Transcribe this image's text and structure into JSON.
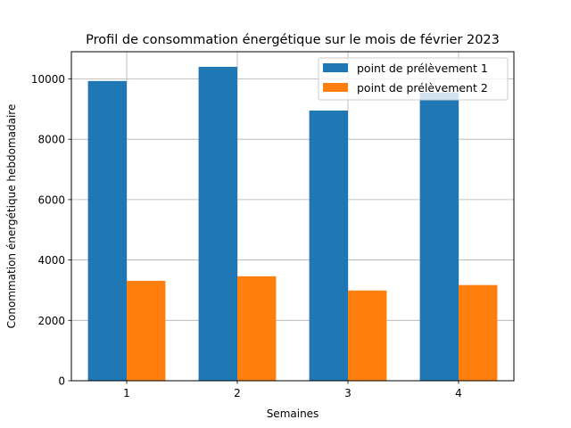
{
  "chart_data": {
    "type": "bar",
    "title": "Profil de consommation énergétique sur le mois de février 2023",
    "xlabel": "Semaines",
    "ylabel": "Conommation énergétique hebdomadaire",
    "categories": [
      "1",
      "2",
      "3",
      "4"
    ],
    "series": [
      {
        "name": "point de prélèvement 1",
        "color": "#1f77b4",
        "values": [
          9930,
          10400,
          8950,
          9550
        ]
      },
      {
        "name": "point de prélèvement 2",
        "color": "#ff7f0e",
        "values": [
          3310,
          3460,
          2990,
          3170
        ]
      }
    ],
    "ylim": [
      0,
      10900
    ],
    "yticks": [
      0,
      2000,
      4000,
      6000,
      8000,
      10000
    ],
    "grid": true,
    "legend_position": "top-right"
  }
}
